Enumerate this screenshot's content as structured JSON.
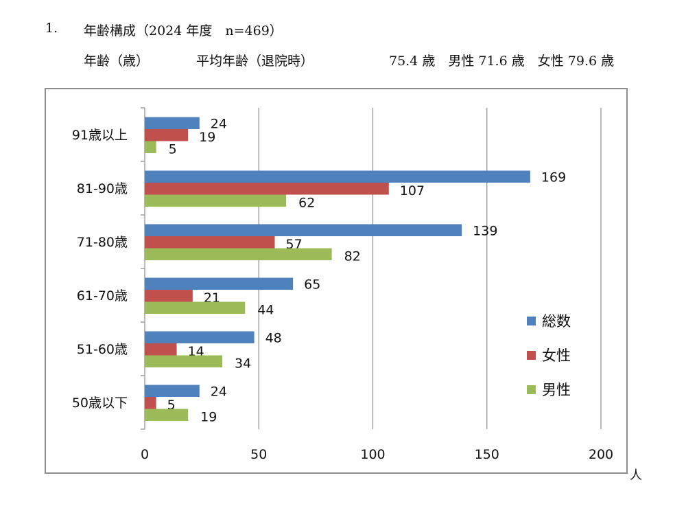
{
  "header": {
    "number": "1.",
    "title": "年齢構成（2024 年度　n=469）",
    "age_label": "年齢（歳）",
    "avg_label": "平均年齢（退院時）",
    "avg_values": "75.4 歳　男性 71.6 歳　女性 79.6 歳"
  },
  "chart_data": {
    "type": "bar",
    "orientation": "horizontal",
    "categories": [
      "91歳以上",
      "81-90歳",
      "71-80歳",
      "61-70歳",
      "51-60歳",
      "50歳以下"
    ],
    "series": [
      {
        "name": "総数",
        "color": "#4F81BD",
        "values": [
          24,
          169,
          139,
          65,
          48,
          24
        ]
      },
      {
        "name": "女性",
        "color": "#C0504D",
        "values": [
          19,
          107,
          57,
          21,
          14,
          5
        ]
      },
      {
        "name": "男性",
        "color": "#9BBB59",
        "values": [
          5,
          62,
          82,
          44,
          34,
          19
        ]
      }
    ],
    "x_ticks": [
      "0",
      "50",
      "100",
      "150",
      "200"
    ],
    "xlim": [
      0,
      200
    ],
    "unit": "人",
    "grid": true,
    "legend": "right"
  }
}
